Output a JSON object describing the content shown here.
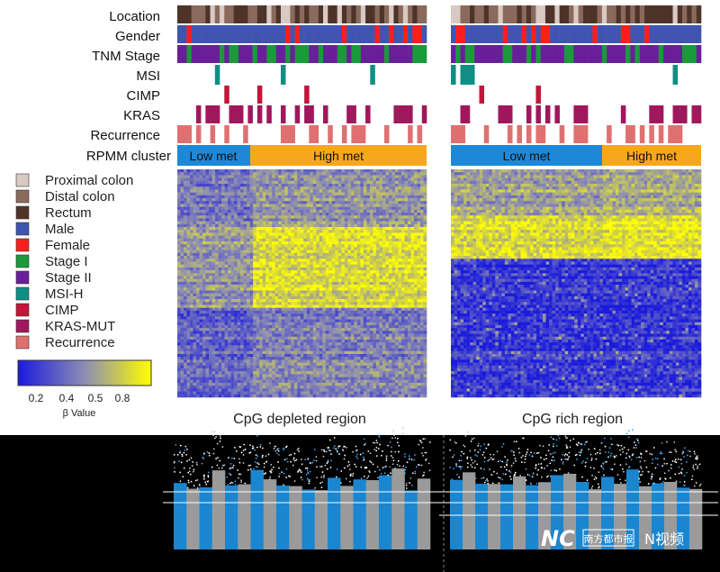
{
  "figure": {
    "track_labels": [
      "Location",
      "Gender",
      "TNM Stage",
      "MSI",
      "CIMP",
      "KRAS",
      "Recurrence",
      "RPMM cluster"
    ],
    "legend": [
      {
        "label": "Proximal colon",
        "color": "#d9c9c3"
      },
      {
        "label": "Distal colon",
        "color": "#8a6a5c"
      },
      {
        "label": "Rectum",
        "color": "#4e3329"
      },
      {
        "label": "Male",
        "color": "#3f55b0"
      },
      {
        "label": "Female",
        "color": "#ff1e1e"
      },
      {
        "label": "Stage I",
        "color": "#1a9a3a"
      },
      {
        "label": "Stage II",
        "color": "#6a1f9a"
      },
      {
        "label": "MSI-H",
        "color": "#0f8f84"
      },
      {
        "label": "CIMP",
        "color": "#c4153a"
      },
      {
        "label": "KRAS-MUT",
        "color": "#a0185c"
      },
      {
        "label": "Recurrence",
        "color": "#e07070"
      }
    ],
    "colorbar": {
      "ticks": [
        "0.2",
        "0.4",
        "0.5",
        "0.8"
      ],
      "label": "β Value",
      "low_color": "#1a1adc",
      "mid_color": "#8c8cb4",
      "high_color": "#ffff00"
    },
    "clusters": {
      "low": "Low met",
      "high": "High met",
      "low_color": "#1e88d8",
      "high_color": "#f7a71c"
    },
    "regions": [
      {
        "title": "CpG depleted region"
      },
      {
        "title": "CpG rich region"
      }
    ],
    "watermark": {
      "logo_text": "NC",
      "brand_text": "南方都市报",
      "video_text": "N视频"
    }
  },
  "chart_data": [
    {
      "type": "heatmap",
      "title": "CpG depleted region",
      "columns_by_cluster": {
        "Low met": "left section",
        "High met": "right section"
      },
      "value_range": [
        0,
        1
      ],
      "pattern": "predominantly intermediate-to-high β values; strongest yellow block in the middle rows of the High met cluster"
    },
    {
      "type": "heatmap",
      "title": "CpG rich region",
      "columns_by_cluster": {
        "Low met": "left section",
        "High met": "right section"
      },
      "value_range": [
        0,
        1
      ],
      "pattern": "upper block high β (yellow), lower block low β (blue) across all samples"
    },
    {
      "type": "scatter",
      "panels": 2,
      "style": "Manhattan-style plot with alternating blue and gray vertical bands; horizontal white threshold lines"
    }
  ]
}
